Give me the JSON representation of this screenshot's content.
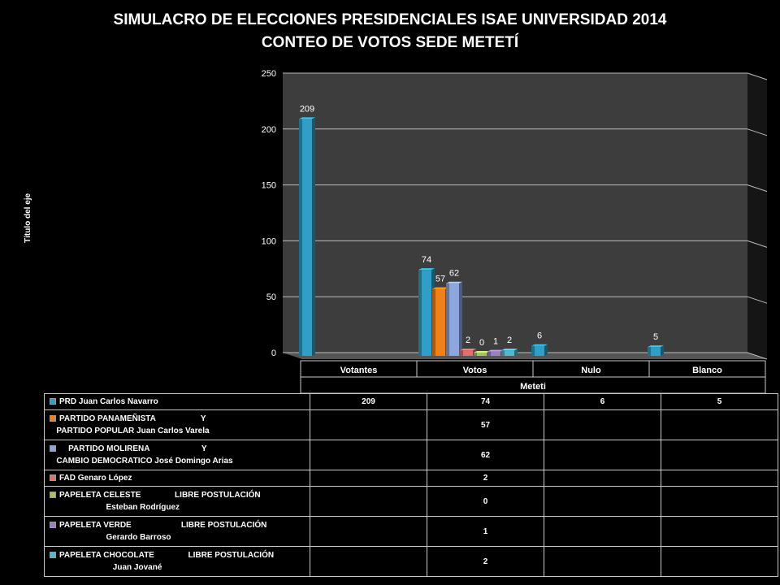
{
  "title_line1": "SIMULACRO DE ELECCIONES PRESIDENCIALES ISAE UNIVERSIDAD 2014",
  "title_line2": "CONTEO DE VOTOS SEDE METETÍ",
  "chart_data": {
    "type": "bar",
    "title": "SIMULACRO DE ELECCIONES PRESIDENCIALES ISAE UNIVERSIDAD 2014 CONTEO DE VOTOS SEDE METETÍ",
    "ylabel": "Título del eje",
    "xlabel": "Meteti",
    "ylim": [
      0,
      250
    ],
    "yticks": [
      0,
      50,
      100,
      150,
      200,
      250
    ],
    "categories": [
      "Votantes",
      "Votos",
      "Nulo",
      "Blanco"
    ],
    "series": [
      {
        "name": "PRD Juan Carlos Navarro",
        "label_lines": [
          "PRD Juan Carlos Navarro"
        ],
        "color": "#2f9fc7",
        "values": [
          209,
          74,
          6,
          5
        ]
      },
      {
        "name": "PARTIDO PANAMEÑISTA Y PARTIDO POPULAR Juan Carlos Varela",
        "label_lines": [
          "PARTIDO PANAMEÑISTA                    Y",
          "   PARTIDO POPULAR Juan Carlos Varela"
        ],
        "color": "#f0801a",
        "values": [
          null,
          57,
          null,
          null
        ]
      },
      {
        "name": "PARTIDO MOLIRENA Y CAMBIO DEMOCRATICO José Domingo Arias",
        "label_lines": [
          "    PARTIDO MOLIRENA                       Y",
          "   CAMBIO DEMOCRATICO José Domingo Arias"
        ],
        "color": "#8ea6de",
        "values": [
          null,
          62,
          null,
          null
        ]
      },
      {
        "name": "FAD Genaro López",
        "label_lines": [
          "FAD Genaro López"
        ],
        "color": "#e07070",
        "values": [
          null,
          2,
          null,
          null
        ]
      },
      {
        "name": "PAPELETA CELESTE LIBRE POSTULACIÓN Esteban Rodríguez",
        "label_lines": [
          "PAPELETA CELESTE               LIBRE POSTULACIÓN",
          "                         Esteban Rodríguez"
        ],
        "color": "#a8c060",
        "values": [
          null,
          0,
          null,
          null
        ]
      },
      {
        "name": "PAPELETA VERDE LIBRE POSTULACIÓN Gerardo Barroso",
        "label_lines": [
          "PAPELETA VERDE                      LIBRE POSTULACIÓN",
          "                         Gerardo Barroso"
        ],
        "color": "#9a80c0",
        "values": [
          null,
          1,
          null,
          null
        ]
      },
      {
        "name": "PAPELETA CHOCOLATE LIBRE POSTULACIÓN Juan Jované",
        "label_lines": [
          "PAPELETA CHOCOLATE               LIBRE POSTULACIÓN",
          "                            Juan Jované"
        ],
        "color": "#50b8d0",
        "values": [
          null,
          2,
          null,
          null
        ]
      }
    ],
    "grid": true,
    "legend": "data-table-below"
  }
}
